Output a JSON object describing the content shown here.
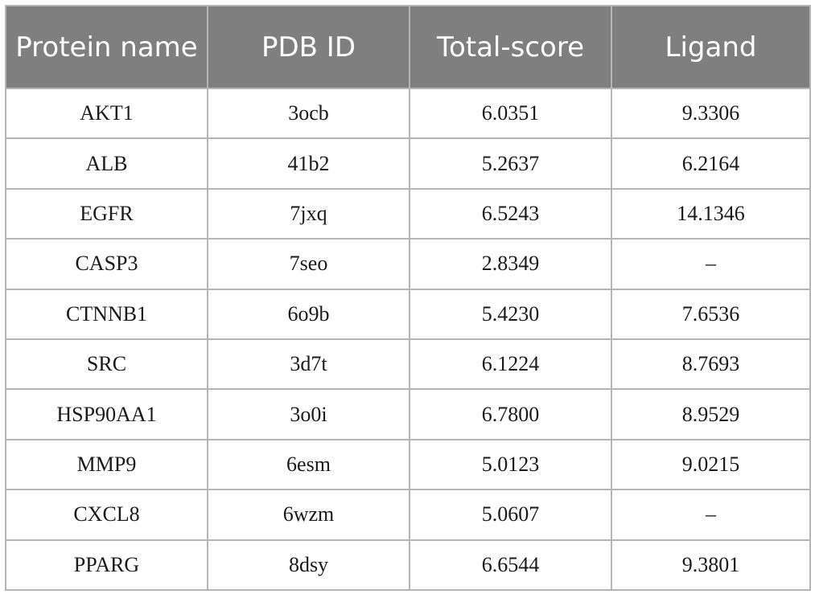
{
  "table": {
    "headers": [
      "Protein name",
      "PDB ID",
      "Total-score",
      "Ligand"
    ],
    "rows": [
      [
        "AKT1",
        "3ocb",
        "6.0351",
        "9.3306"
      ],
      [
        "ALB",
        "41b2",
        "5.2637",
        "6.2164"
      ],
      [
        "EGFR",
        "7jxq",
        "6.5243",
        "14.1346"
      ],
      [
        "CASP3",
        "7seo",
        "2.8349",
        "–"
      ],
      [
        "CTNNB1",
        "6o9b",
        "5.4230",
        "7.6536"
      ],
      [
        "SRC",
        "3d7t",
        "6.1224",
        "8.7693"
      ],
      [
        "HSP90AA1",
        "3o0i",
        "6.7800",
        "8.9529"
      ],
      [
        "MMP9",
        "6esm",
        "5.0123",
        "9.0215"
      ],
      [
        "CXCL8",
        "6wzm",
        "5.0607",
        "–"
      ],
      [
        "PPARG",
        "8dsy",
        "6.6544",
        "9.3801"
      ]
    ]
  },
  "colors": {
    "header_background": "#7f7f7f",
    "header_text": "#ffffff",
    "grid_lines": "#b5b5b5",
    "cell_text": "#1a1a1a"
  }
}
